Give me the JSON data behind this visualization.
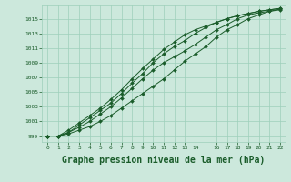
{
  "background_color": "#cce8dc",
  "grid_color": "#9ecfba",
  "line_color": "#1a5c2a",
  "marker_color": "#1a5c2a",
  "xlabel": "Graphe pression niveau de la mer (hPa)",
  "xlabel_fontsize": 7,
  "xlim": [
    -0.5,
    22.5
  ],
  "ylim": [
    998.2,
    1016.8
  ],
  "yticks": [
    999,
    1001,
    1003,
    1005,
    1007,
    1009,
    1011,
    1013,
    1015
  ],
  "xticks": [
    0,
    1,
    2,
    3,
    4,
    5,
    6,
    7,
    8,
    9,
    10,
    11,
    12,
    13,
    14,
    16,
    17,
    18,
    19,
    20,
    21,
    22
  ],
  "lines": [
    [
      999.0,
      999.0,
      999.3,
      999.8,
      1000.3,
      1001.0,
      1001.8,
      1002.8,
      1003.8,
      1004.8,
      1005.8,
      1006.8,
      1008.0,
      1009.2,
      1010.2,
      1011.2,
      1012.5,
      1013.5,
      1014.2,
      1015.0,
      1015.5,
      1016.0,
      1016.3
    ],
    [
      999.0,
      999.0,
      999.5,
      1000.2,
      1001.0,
      1002.0,
      1003.0,
      1004.2,
      1005.5,
      1006.8,
      1008.0,
      1009.0,
      1009.8,
      1010.6,
      1011.5,
      1012.5,
      1013.5,
      1014.2,
      1015.0,
      1015.5,
      1015.8,
      1016.0,
      1016.2
    ],
    [
      999.0,
      999.0,
      999.5,
      1000.5,
      1001.5,
      1002.5,
      1003.5,
      1004.8,
      1006.2,
      1007.5,
      1009.0,
      1010.2,
      1011.2,
      1012.0,
      1013.0,
      1013.8,
      1014.5,
      1015.0,
      1015.4,
      1015.7,
      1016.0,
      1016.2,
      1016.4
    ],
    [
      999.0,
      999.0,
      999.8,
      1000.8,
      1001.8,
      1002.8,
      1004.0,
      1005.3,
      1006.8,
      1008.2,
      1009.5,
      1010.8,
      1011.8,
      1012.8,
      1013.5,
      1014.0,
      1014.5,
      1015.0,
      1015.4,
      1015.7,
      1016.0,
      1016.2,
      1016.4
    ]
  ]
}
